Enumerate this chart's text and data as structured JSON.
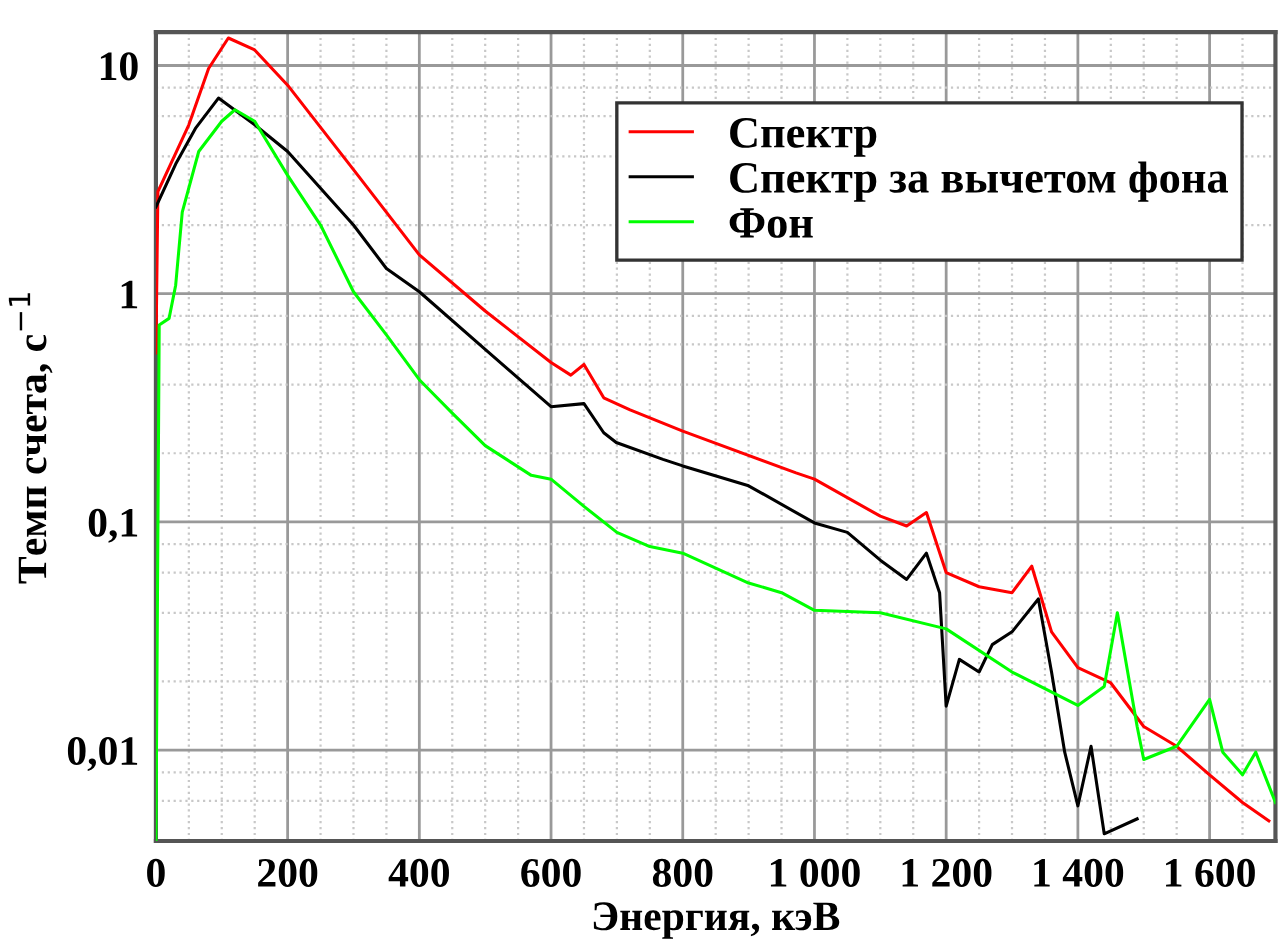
{
  "chart_data": {
    "type": "line",
    "xlabel": "Энергия, кэВ",
    "ylabel": "Темп счета, с$^{−1}$",
    "log": "y",
    "xlim": [
      0,
      1700
    ],
    "ylim": [
      0.004,
      14
    ],
    "xticks": [
      0,
      {
        "value": 50,
        "label": null
      },
      {
        "value": 100,
        "label": null
      },
      {
        "value": 150,
        "label": null
      },
      200,
      {
        "value": 250,
        "label": null
      },
      {
        "value": 300,
        "label": null
      },
      {
        "value": 350,
        "label": null
      },
      400,
      {
        "value": 450,
        "label": null
      },
      {
        "value": 500,
        "label": null
      },
      {
        "value": 550,
        "label": null
      },
      600,
      {
        "value": 650,
        "label": null
      },
      {
        "value": 700,
        "label": null
      },
      {
        "value": 750,
        "label": null
      },
      800,
      {
        "value": 850,
        "label": null
      },
      {
        "value": 900,
        "label": null
      },
      {
        "value": 950,
        "label": null
      },
      {
        "value": 1000,
        "label": "1 000"
      },
      {
        "value": 1050,
        "label": null
      },
      {
        "value": 1100,
        "label": null
      },
      {
        "value": 1150,
        "label": null
      },
      {
        "value": 1200,
        "label": "1 200"
      },
      {
        "value": 1250,
        "label": null
      },
      {
        "value": 1300,
        "label": null
      },
      {
        "value": 1350,
        "label": null
      },
      {
        "value": 1400,
        "label": "1 400"
      },
      {
        "value": 1450,
        "label": null
      },
      {
        "value": 1500,
        "label": null
      },
      {
        "value": 1550,
        "label": null
      },
      {
        "value": 1600,
        "label": "1 600"
      },
      {
        "value": 1650,
        "label": null
      }
    ],
    "yticks": [
      {
        "value": 0.006,
        "label": null
      },
      {
        "value": 0.008,
        "label": null
      },
      {
        "value": 0.01,
        "label": "0,01"
      },
      {
        "value": 0.02,
        "label": null
      },
      {
        "value": 0.04,
        "label": null
      },
      {
        "value": 0.06,
        "label": null
      },
      {
        "value": 0.08,
        "label": null
      },
      {
        "value": 0.1,
        "label": "0,1"
      },
      {
        "value": 0.2,
        "label": null
      },
      {
        "value": 0.4,
        "label": null
      },
      {
        "value": 0.6,
        "label": null
      },
      {
        "value": 0.8,
        "label": null
      },
      1,
      {
        "value": 2,
        "label": null
      },
      {
        "value": 4,
        "label": null
      },
      {
        "value": 6,
        "label": null
      },
      {
        "value": 8,
        "label": null
      },
      10
    ],
    "grid": true,
    "legend": "top right",
    "marker": "none",
    "line_style": "solid",
    "series": [
      {
        "name": "Спектр",
        "color": "#ff0000",
        "x": [
          0,
          3,
          50,
          80,
          110,
          150,
          200,
          300,
          400,
          500,
          600,
          630,
          650,
          680,
          720,
          800,
          972,
          1000,
          1100,
          1140,
          1170,
          1200,
          1250,
          1300,
          1330,
          1360,
          1400,
          1450,
          1500,
          1550,
          1600,
          1650,
          1690
        ],
        "values": [
          0.55,
          2.8,
          5.5,
          9.7,
          13.2,
          11.7,
          8.2,
          3.5,
          1.48,
          0.84,
          0.5,
          0.44,
          0.49,
          0.35,
          0.31,
          0.25,
          0.164,
          0.154,
          0.106,
          0.096,
          0.11,
          0.06,
          0.052,
          0.049,
          0.064,
          0.033,
          0.023,
          0.0197,
          0.0127,
          0.0104,
          0.0078,
          0.0059,
          0.0049
        ]
      },
      {
        "name": "Спектр за вычетом фона",
        "color": "#000000",
        "x": [
          0,
          30,
          60,
          95,
          150,
          200,
          300,
          350,
          400,
          500,
          600,
          650,
          680,
          699,
          770,
          800,
          900,
          1000,
          1050,
          1100,
          1140,
          1170,
          1190,
          1200,
          1220,
          1250,
          1270,
          1300,
          1340,
          1360,
          1380,
          1400,
          1420,
          1440,
          1490
        ],
        "values": [
          2.4,
          3.7,
          5.3,
          7.2,
          5.5,
          4.2,
          2.0,
          1.29,
          1.02,
          0.57,
          0.32,
          0.33,
          0.246,
          0.223,
          0.188,
          0.176,
          0.144,
          0.099,
          0.09,
          0.068,
          0.056,
          0.073,
          0.049,
          0.0156,
          0.025,
          0.022,
          0.029,
          0.033,
          0.046,
          0.022,
          0.0098,
          0.0057,
          0.0104,
          0.0043,
          0.005
        ]
      },
      {
        "name": "Фон",
        "color": "#00ff00",
        "x": [
          0,
          5,
          20,
          30,
          40,
          65,
          100,
          120,
          150,
          200,
          250,
          300,
          350,
          400,
          450,
          500,
          570,
          600,
          650,
          700,
          750,
          800,
          900,
          950,
          1000,
          1100,
          1200,
          1300,
          1400,
          1440,
          1460,
          1490,
          1500,
          1550,
          1600,
          1620,
          1650,
          1670,
          1700
        ],
        "values": [
          0.004,
          0.73,
          0.78,
          1.09,
          2.28,
          4.2,
          5.7,
          6.4,
          5.7,
          3.3,
          2.0,
          1.02,
          0.66,
          0.42,
          0.3,
          0.216,
          0.16,
          0.154,
          0.117,
          0.09,
          0.078,
          0.073,
          0.054,
          0.049,
          0.041,
          0.04,
          0.034,
          0.022,
          0.0157,
          0.019,
          0.04,
          0.0127,
          0.0091,
          0.0104,
          0.0167,
          0.0098,
          0.0078,
          0.0098,
          0.0059
        ]
      }
    ]
  }
}
